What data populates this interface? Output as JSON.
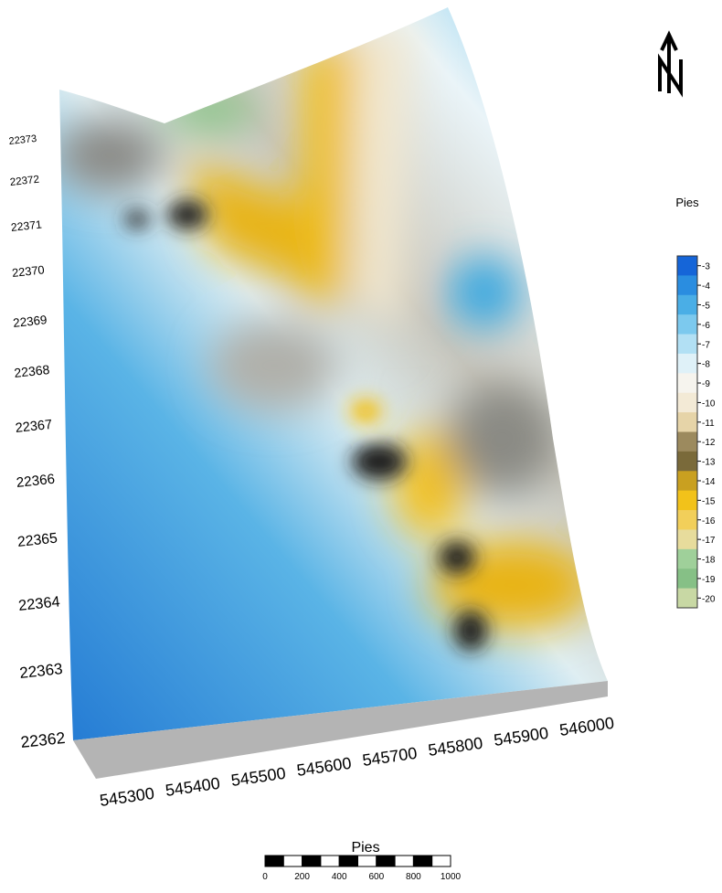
{
  "y_axis": {
    "labels": [
      "22373",
      "22372",
      "22371",
      "22370",
      "22369",
      "22368",
      "22367",
      "22366",
      "22365",
      "22364",
      "22363",
      "22362"
    ]
  },
  "x_axis": {
    "labels": [
      "545300",
      "545400",
      "545500",
      "545600",
      "545700",
      "545800",
      "545900",
      "546000"
    ]
  },
  "legend": {
    "title": "Pies",
    "ticks": [
      -3,
      -4,
      -5,
      -6,
      -7,
      -8,
      -9,
      -10,
      -11,
      -12,
      -13,
      -14,
      -15,
      -16,
      -17,
      -18,
      -19,
      -20
    ],
    "colors": [
      "#1565d8",
      "#2a8de0",
      "#4aaee6",
      "#7cc9ee",
      "#b2e0f4",
      "#dff1f8",
      "#f6f4ee",
      "#f3ead6",
      "#e6d4a8",
      "#9c8a5e",
      "#7a6a3a",
      "#c9a020",
      "#f2c21a",
      "#f2cf5a",
      "#e7dc9c",
      "#9fd09a",
      "#86c086",
      "#c8d8a4"
    ]
  },
  "scale_bar": {
    "title": "Pies",
    "ticks": [
      0,
      200,
      400,
      600,
      800,
      1000
    ]
  }
}
